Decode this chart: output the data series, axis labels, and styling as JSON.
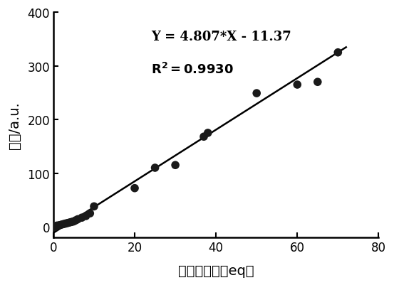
{
  "scatter_x": [
    0.2,
    0.5,
    0.8,
    1.0,
    1.5,
    2.0,
    2.5,
    3.0,
    3.5,
    4.0,
    4.5,
    5.0,
    5.5,
    6.0,
    7.0,
    8.0,
    9.0,
    10.0,
    20.0,
    25.0,
    30.0,
    37.0,
    38.0,
    50.0,
    60.0,
    65.0,
    70.0
  ],
  "scatter_y": [
    0,
    0,
    2,
    2,
    3,
    4,
    5,
    6,
    7,
    8,
    9,
    10,
    12,
    14,
    17,
    20,
    25,
    38,
    72,
    110,
    115,
    168,
    175,
    249,
    265,
    270,
    325
  ],
  "line_slope": 4.807,
  "line_intercept": -11.37,
  "x_line_start": 0,
  "x_line_end": 72,
  "xlabel": "硬化氪浓度（eq）",
  "ylabel": "强度/a.u.",
  "equation_line1": "Y = 4.807*X - 11.37",
  "equation_line2": "R",
  "r2_value": "=0.9930",
  "xlim": [
    0,
    80
  ],
  "ylim": [
    -20,
    400
  ],
  "xticks": [
    0,
    20,
    40,
    60,
    80
  ],
  "yticks": [
    0,
    100,
    200,
    300,
    400
  ],
  "dot_color": "#1a1a1a",
  "line_color": "#000000",
  "dot_size": 70,
  "background_color": "#ffffff",
  "annotation_fontsize": 13,
  "axis_fontsize": 14,
  "tick_fontsize": 12
}
